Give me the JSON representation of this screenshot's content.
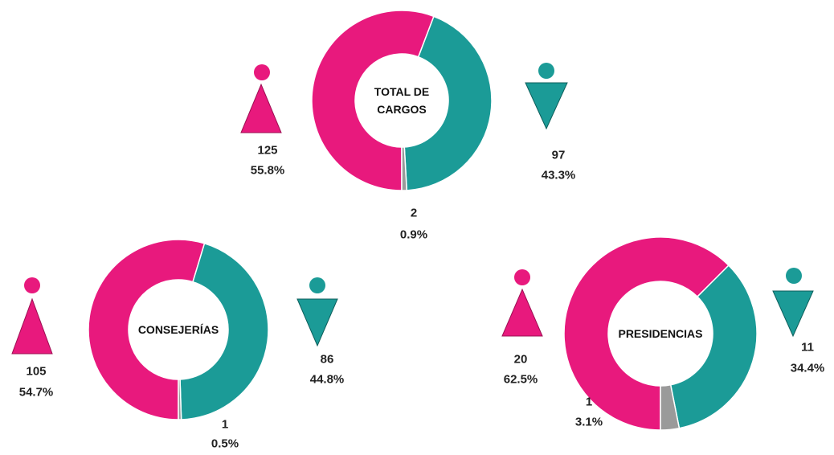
{
  "chart_data": [
    {
      "type": "donut",
      "title": "TOTAL DE CARGOS",
      "values": [
        125,
        97,
        2
      ],
      "shares": [
        55.8,
        43.3,
        0.9
      ],
      "share_labels": [
        "55.8%",
        "43.3%",
        "0.9%"
      ],
      "colors": [
        "#e8197d",
        "#1b9b97",
        "#9a9a9a"
      ]
    },
    {
      "type": "donut",
      "title": "CONSEJERÍAS",
      "values": [
        105,
        86,
        1
      ],
      "shares": [
        54.7,
        44.8,
        0.5
      ],
      "share_labels": [
        "54.7%",
        "44.8%",
        "0.5%"
      ],
      "colors": [
        "#e8197d",
        "#1b9b97",
        "#9a9a9a"
      ]
    },
    {
      "type": "donut",
      "title": "PRESIDENCIAS",
      "values": [
        20,
        11,
        1
      ],
      "shares": [
        62.5,
        34.4,
        3.1
      ],
      "share_labels": [
        "62.5%",
        "34.4%",
        "3.1%"
      ],
      "colors": [
        "#e8197d",
        "#1b9b97",
        "#9a9a9a"
      ]
    }
  ]
}
